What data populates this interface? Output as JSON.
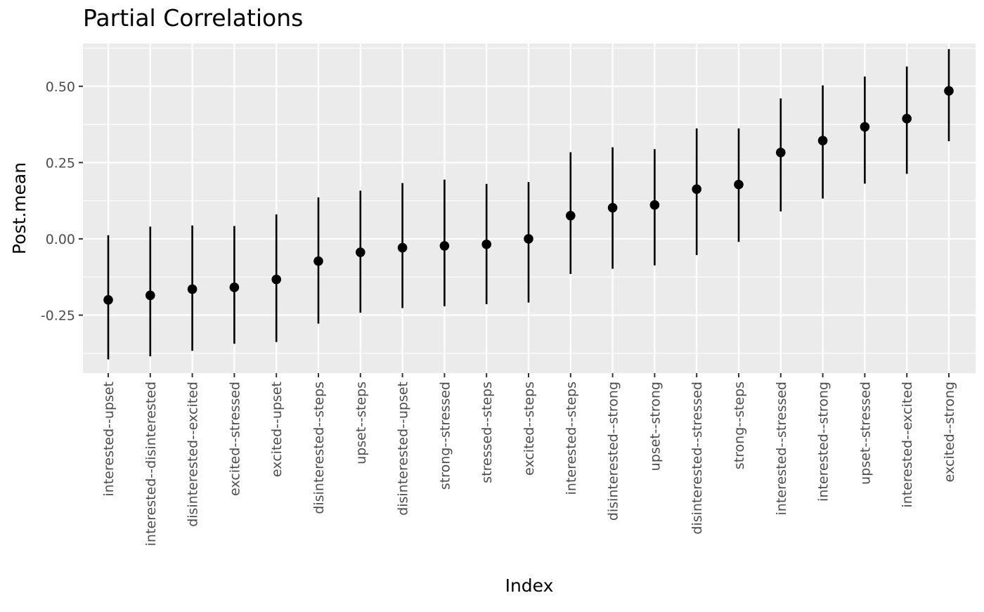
{
  "chart_data": {
    "type": "scatter",
    "title": "Partial Correlations",
    "xlabel": "Index",
    "ylabel": "Post.mean",
    "ylim": [
      -0.44,
      0.64
    ],
    "yticks": [
      -0.25,
      0.0,
      0.25,
      0.5
    ],
    "ytick_labels": [
      "-0.25",
      "0.00",
      "0.25",
      "0.50"
    ],
    "grid": true,
    "error_bars": true,
    "categories": [
      "interested--upset",
      "interested--disinterested",
      "disinterested--excited",
      "excited--stressed",
      "excited--upset",
      "disinterested--steps",
      "upset--steps",
      "disinterested--upset",
      "strong--stressed",
      "stressed--steps",
      "excited--steps",
      "interested--steps",
      "disinterested--strong",
      "upset--strong",
      "disinterested--stressed",
      "strong--steps",
      "interested--stressed",
      "interested--strong",
      "upset--stressed",
      "interested--excited",
      "excited--strong"
    ],
    "values": [
      -0.2,
      -0.185,
      -0.165,
      -0.159,
      -0.133,
      -0.073,
      -0.044,
      -0.029,
      -0.023,
      -0.018,
      0.0,
      0.076,
      0.102,
      0.111,
      0.163,
      0.178,
      0.283,
      0.322,
      0.367,
      0.394,
      0.485
    ],
    "lower": [
      -0.395,
      -0.385,
      -0.367,
      -0.344,
      -0.338,
      -0.278,
      -0.242,
      -0.227,
      -0.221,
      -0.214,
      -0.209,
      -0.115,
      -0.098,
      -0.087,
      -0.053,
      -0.01,
      0.09,
      0.132,
      0.181,
      0.213,
      0.32
    ],
    "upper": [
      0.012,
      0.04,
      0.044,
      0.042,
      0.08,
      0.136,
      0.158,
      0.183,
      0.194,
      0.18,
      0.186,
      0.284,
      0.3,
      0.294,
      0.362,
      0.362,
      0.46,
      0.503,
      0.532,
      0.565,
      0.622
    ]
  },
  "colors": {
    "panel_background": "#ebebeb",
    "grid_line": "#ffffff",
    "point": "#000000",
    "axis_text": "#4d4d4d",
    "axis_title": "#000000"
  }
}
